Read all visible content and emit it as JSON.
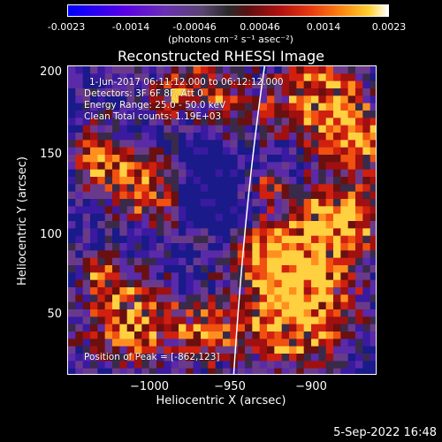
{
  "colorbar": {
    "ticks": [
      "-0.0023",
      "-0.0014",
      "-0.00046",
      "0.00046",
      "0.0014",
      "0.0023"
    ],
    "unit_label": "(photons cm⁻² s⁻¹ asec⁻²)"
  },
  "plot": {
    "title": "Reconstructed RHESSI Image",
    "xlabel": "Heliocentric X (arcsec)",
    "ylabel": "Heliocentric Y (arcsec)",
    "xticks": [
      "−1000",
      "−950",
      "−900"
    ],
    "yticks": [
      "200",
      "150",
      "100",
      "50"
    ],
    "annotations": {
      "time_range": "1-Jun-2017 06:11:12.000 to 06:12:12.000",
      "detectors": "Detectors: 3F 6F 8F, Att 0",
      "energy_range": "Energy Range: 25.0 - 50.0 keV",
      "method": "Clean    Total counts: 1.19E+03",
      "peak": "Position of Peak = [-862,123]"
    }
  },
  "footer": {
    "timestamp": "5-Sep-2022 16:48"
  },
  "colors": {
    "background": "#000000",
    "limb": "#ffffff"
  }
}
